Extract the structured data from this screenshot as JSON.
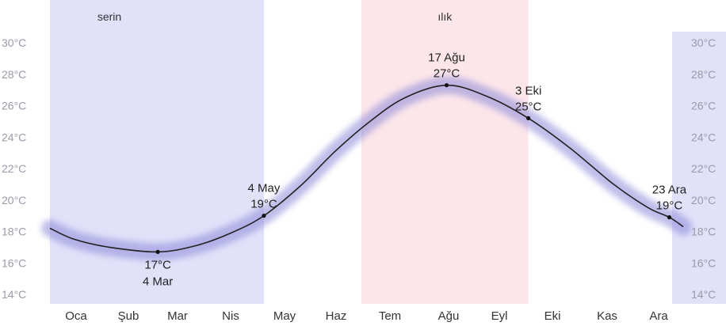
{
  "chart_data": {
    "type": "line",
    "x_unit": "day_of_year",
    "y_unit": "°C",
    "ylim": [
      13.5,
      31
    ],
    "y_ticks": [
      {
        "value": 14,
        "label": "14°C"
      },
      {
        "value": 16,
        "label": "16°C"
      },
      {
        "value": 18,
        "label": "18°C"
      },
      {
        "value": 20,
        "label": "20°C"
      },
      {
        "value": 22,
        "label": "22°C"
      },
      {
        "value": 24,
        "label": "24°C"
      },
      {
        "value": 26,
        "label": "26°C"
      },
      {
        "value": 28,
        "label": "28°C"
      },
      {
        "value": 30,
        "label": "30°C"
      }
    ],
    "months": [
      "Oca",
      "Şub",
      "Mar",
      "Nis",
      "May",
      "Haz",
      "Tem",
      "Ağu",
      "Eyl",
      "Eki",
      "Kas",
      "Ara"
    ],
    "seasons": [
      {
        "label": "serin",
        "start_day": 1,
        "end_day": 124,
        "color": "#dcdcf8"
      },
      {
        "label": "ılık",
        "start_day": 180,
        "end_day": 276,
        "color": "#fbe2e6"
      }
    ],
    "series": [
      {
        "color": "#222222",
        "band_color": "#8c88d8",
        "points": [
          [
            1,
            18.2
          ],
          [
            15,
            17.5
          ],
          [
            35,
            17.0
          ],
          [
            63,
            16.7
          ],
          [
            85,
            17.1
          ],
          [
            105,
            17.9
          ],
          [
            124,
            19.0
          ],
          [
            145,
            20.9
          ],
          [
            165,
            23.1
          ],
          [
            185,
            25.0
          ],
          [
            205,
            26.5
          ],
          [
            229,
            27.3
          ],
          [
            252,
            26.6
          ],
          [
            276,
            25.2
          ],
          [
            300,
            23.3
          ],
          [
            325,
            21.0
          ],
          [
            345,
            19.5
          ],
          [
            357,
            18.9
          ],
          [
            365,
            18.3
          ]
        ]
      }
    ],
    "annotations": [
      {
        "day": 63,
        "value": 16.7,
        "temp_label": "17°C",
        "date_label": "4 Mar",
        "position": "below"
      },
      {
        "day": 124,
        "value": 19.0,
        "temp_label": "19°C",
        "date_label": "4 May",
        "position": "above"
      },
      {
        "day": 229,
        "value": 27.3,
        "temp_label": "27°C",
        "date_label": "17 Ağu",
        "position": "above"
      },
      {
        "day": 276,
        "value": 25.2,
        "temp_label": "25°C",
        "date_label": "3 Eki",
        "position": "above"
      },
      {
        "day": 357,
        "value": 18.9,
        "temp_label": "19°C",
        "date_label": "23 Ara",
        "position": "above"
      }
    ]
  }
}
